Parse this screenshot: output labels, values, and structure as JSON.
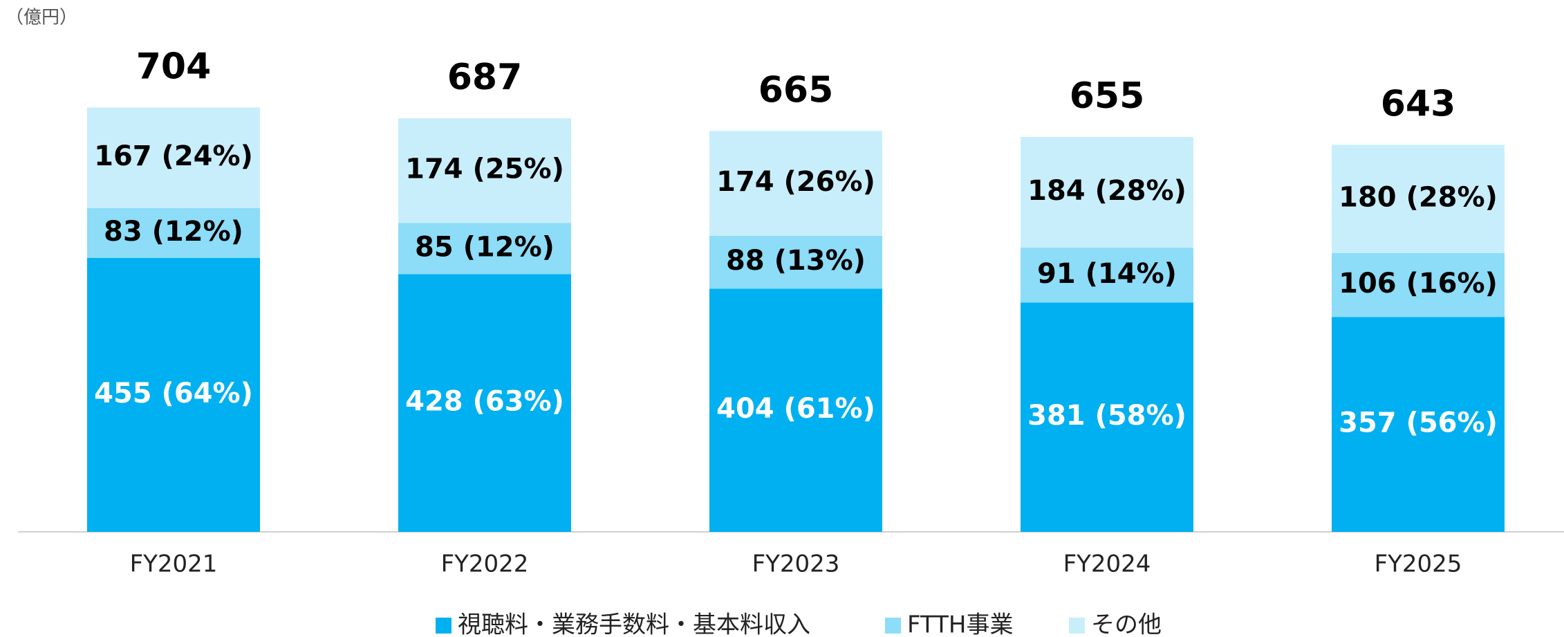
{
  "chart_data": {
    "type": "stacked_bar",
    "unit_label": "（億円）",
    "categories": [
      "FY2021",
      "FY2022",
      "FY2023",
      "FY2024",
      "FY2025"
    ],
    "series": [
      {
        "name": "視聴料・業務手数料・基本料収入",
        "color": "#00b0f0",
        "label_color": "#ffffff",
        "values": [
          455,
          428,
          404,
          381,
          357
        ],
        "value_labels": [
          "455 (64%)",
          "428 (63%)",
          "404 (61%)",
          "381 (58%)",
          "357 (56%)"
        ]
      },
      {
        "name": "FTTH事業",
        "color": "#8ddcf8",
        "label_color": "#000000",
        "values": [
          83,
          85,
          88,
          91,
          106
        ],
        "value_labels": [
          "83 (12%)",
          "85 (12%)",
          "88 (13%)",
          "91 (14%)",
          "106 (16%)"
        ]
      },
      {
        "name": "その他",
        "color": "#c8eefc",
        "label_color": "#000000",
        "values": [
          167,
          174,
          174,
          184,
          180
        ],
        "value_labels": [
          "167 (24%)",
          "174 (25%)",
          "174 (26%)",
          "184 (28%)",
          "180 (28%)"
        ]
      }
    ],
    "totals": [
      704,
      687,
      665,
      655,
      643
    ],
    "ylim": [
      0,
      880
    ]
  }
}
